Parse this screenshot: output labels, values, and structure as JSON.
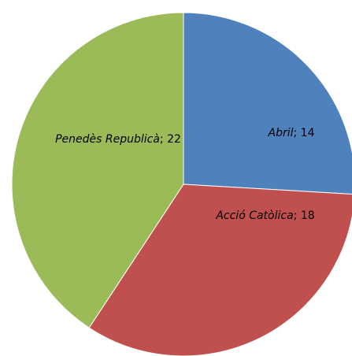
{
  "chart_data": {
    "type": "pie",
    "categories": [
      "Abril",
      "Acció Catòlica",
      "Penedès Republicà"
    ],
    "values": [
      14,
      18,
      22
    ],
    "colors": [
      "#4f81bd",
      "#c0504d",
      "#9bbb59"
    ],
    "label_separator": "; "
  }
}
